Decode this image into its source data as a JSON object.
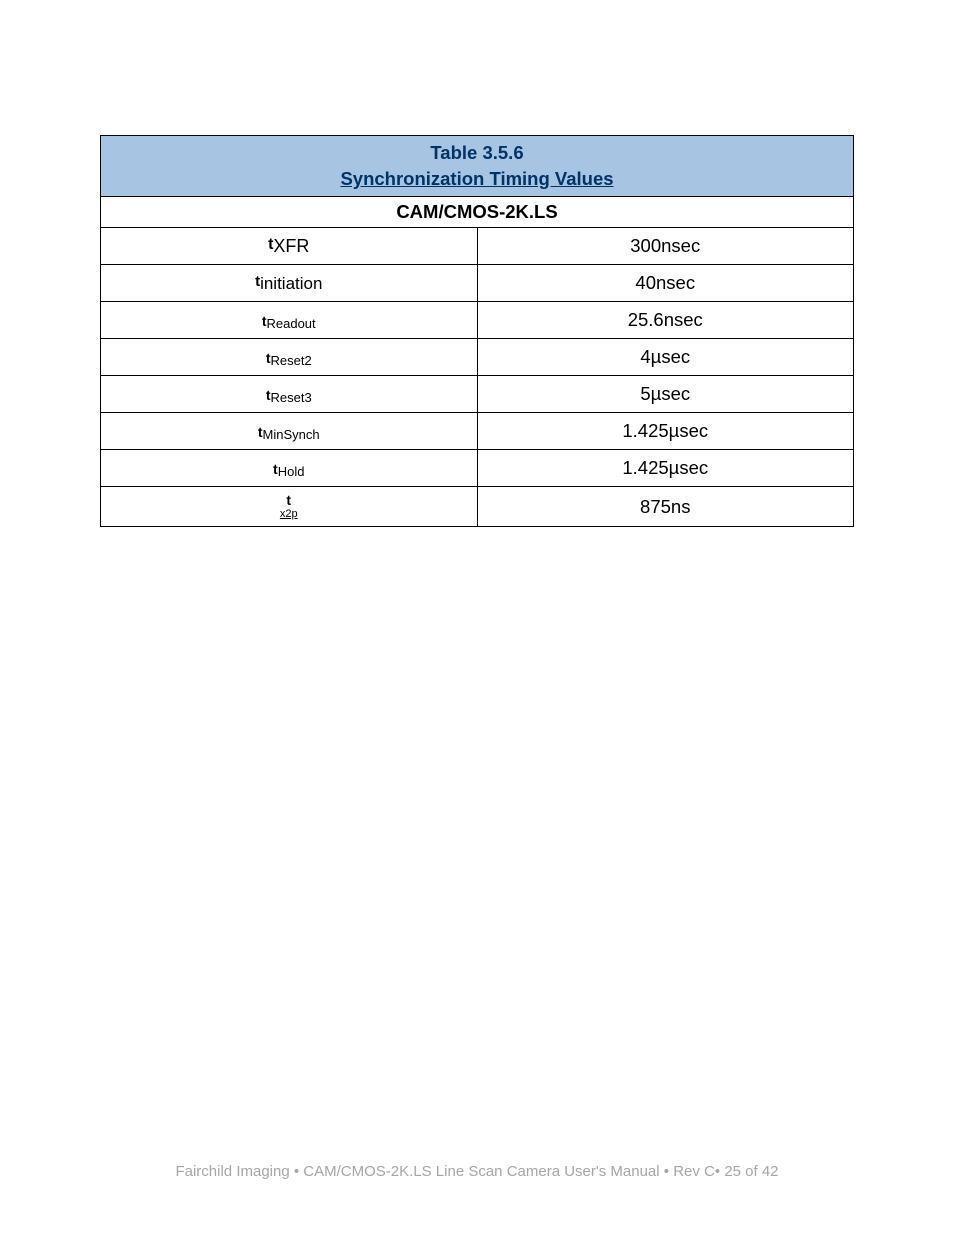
{
  "table": {
    "title_line1": "Table 3.5.6",
    "title_line2": "Synchronization Timing Values",
    "subheader": "CAM/CMOS-2K.LS",
    "header_bg_color": "#a7c4e3",
    "header_text_color": "#003366",
    "border_color": "#000000",
    "rows": [
      {
        "param_prefix": "t",
        "param_sub": "XFR",
        "value": "300nsec"
      },
      {
        "param_prefix": "t",
        "param_sub": "initiation",
        "value": "40nsec"
      },
      {
        "param_prefix": "t",
        "param_sub": "Readout",
        "value": "25.6nsec"
      },
      {
        "param_prefix": "t",
        "param_sub": "Reset2",
        "value": "4µsec"
      },
      {
        "param_prefix": "t",
        "param_sub": "Reset3",
        "value": "5µsec"
      },
      {
        "param_prefix": "t",
        "param_sub": "MinSynch",
        "value": "1.425µsec"
      },
      {
        "param_prefix": "t",
        "param_sub": "Hold",
        "value": "1.425µsec"
      },
      {
        "param_prefix": "t",
        "param_sub": "x2p",
        "value": "875ns"
      }
    ]
  },
  "footer": {
    "company": "Fairchild Imaging",
    "separator": " • ",
    "doc_title": "CAM/CMOS-2K.LS Line Scan Camera User's Manual",
    "rev": "Rev C",
    "page": "25 of 42"
  }
}
